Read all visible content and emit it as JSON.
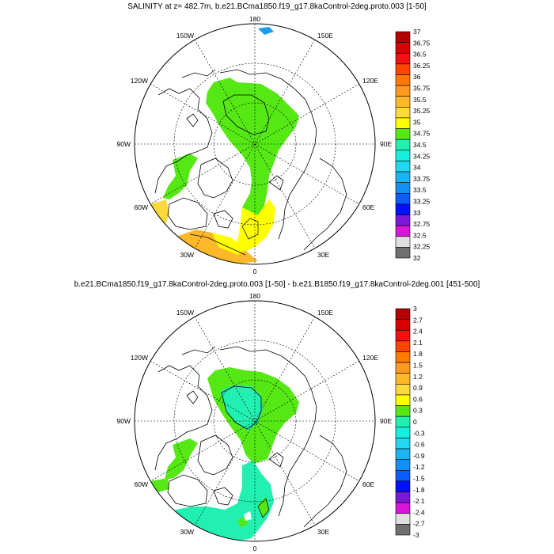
{
  "panels": [
    {
      "title": "SALINITY at z= 482.7m, b.e21.BCma1850.f19_g17.8kaControl-2deg.proto.003 [1-50]",
      "lon_labels": {
        "top": "180",
        "bottom": "0",
        "left": "90W",
        "right": "90E",
        "ul_1": "150W",
        "ul_2": "120W",
        "ur_1": "150E",
        "ur_2": "120E",
        "ll_1": "60W",
        "ll_2": "30W",
        "lr_1": "60E",
        "lr_2": "30E"
      },
      "colorbar": {
        "labels": [
          "37",
          "36.75",
          "36.5",
          "36.25",
          "36",
          "35.75",
          "35.5",
          "35.25",
          "35",
          "34.75",
          "34.5",
          "34.25",
          "34",
          "33.75",
          "33.5",
          "33.25",
          "33",
          "32.75",
          "32.5",
          "32.25",
          "32"
        ],
        "colors": [
          "#b40000",
          "#d80000",
          "#f21010",
          "#ff4400",
          "#ff7a00",
          "#ff9a20",
          "#ffb82a",
          "#ffd83a",
          "#ffff00",
          "#55e814",
          "#22f0b0",
          "#16eede",
          "#20d8f0",
          "#1ab4f0",
          "#1690f0",
          "#0a5cff",
          "#0010ff",
          "#7a18d8",
          "#d816d8",
          "#e0e0e0",
          "#707070"
        ]
      }
    },
    {
      "title": "b.e21.BCma1850.f19_g17.8kaControl-2deg.proto.003 [1-50] - b.e21.B1850.f19_g17.8kaControl-2deg.001 [451-500]",
      "lon_labels": {
        "top": "180",
        "bottom": "0",
        "left": "90W",
        "right": "90E",
        "ul_1": "150W",
        "ul_2": "120W",
        "ur_1": "150E",
        "ur_2": "120E",
        "ll_1": "60W",
        "ll_2": "30W",
        "lr_1": "60E",
        "lr_2": "30E"
      },
      "colorbar": {
        "labels": [
          "3",
          "2.7",
          "2.4",
          "2.1",
          "1.8",
          "1.5",
          "1.2",
          "0.9",
          "0.6",
          "0.3",
          "0",
          "-0.3",
          "-0.6",
          "-0.9",
          "-1.2",
          "-1.5",
          "-1.8",
          "-2.1",
          "-2.4",
          "-2.7",
          "-3"
        ],
        "colors": [
          "#b40000",
          "#d80000",
          "#f21010",
          "#ff4400",
          "#ff7a00",
          "#ff9a20",
          "#ffb82a",
          "#ffd83a",
          "#ffff00",
          "#55e814",
          "#22f0b0",
          "#16eede",
          "#20d8f0",
          "#1ab4f0",
          "#1690f0",
          "#0a5cff",
          "#0010ff",
          "#7a18d8",
          "#d816d8",
          "#e0e0e0",
          "#707070"
        ]
      }
    }
  ]
}
